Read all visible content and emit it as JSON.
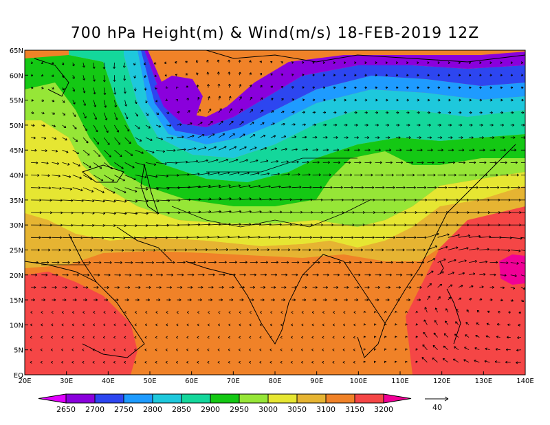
{
  "title": "700 hPa Height(m) & Wind(m/s) 18-FEB-2019 12Z",
  "lon_ticks": [
    "20E",
    "30E",
    "40E",
    "50E",
    "60E",
    "70E",
    "80E",
    "90E",
    "100E",
    "110E",
    "120E",
    "130E",
    "140E"
  ],
  "lat_ticks": [
    "EQ",
    "5N",
    "10N",
    "15N",
    "20N",
    "25N",
    "30N",
    "35N",
    "40N",
    "45N",
    "50N",
    "55N",
    "60N",
    "65N"
  ],
  "colorbar": {
    "labels": [
      "2650",
      "2700",
      "2750",
      "2800",
      "2850",
      "2900",
      "2950",
      "3000",
      "3050",
      "3100",
      "3150",
      "3200"
    ],
    "colors": [
      "#e100ff",
      "#8a00dc",
      "#2d46f0",
      "#1e9bff",
      "#1ec8dc",
      "#14d79b",
      "#14c814",
      "#96e637",
      "#e6e632",
      "#e6b432",
      "#f08228",
      "#f54646",
      "#f00096"
    ]
  },
  "wind_ref": {
    "value": "40"
  },
  "extent": {
    "lon_min": 20,
    "lon_max": 140,
    "lat_min": 0,
    "lat_max": 65
  }
}
